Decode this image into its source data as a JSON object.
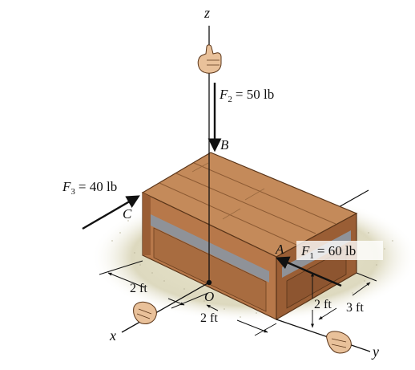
{
  "axes": {
    "x": "x",
    "y": "y",
    "z": "z"
  },
  "points": {
    "origin": "O",
    "A": "A",
    "B": "B",
    "C": "C"
  },
  "forces": {
    "f1": {
      "symbol": "F",
      "subscript": "1",
      "equals": "= 60 lb",
      "magnitude_lb": 60
    },
    "f2": {
      "symbol": "F",
      "subscript": "2",
      "equals": "= 50 lb",
      "magnitude_lb": 50
    },
    "f3": {
      "symbol": "F",
      "subscript": "3",
      "equals": "= 40 lb",
      "magnitude_lb": 40
    }
  },
  "dimensions": {
    "x_left": "2 ft",
    "x_right": "2 ft",
    "height_at_A": "2 ft",
    "depth_at_A": "3 ft"
  },
  "colors": {
    "crate": "#b7784a",
    "crate_top": "#c48a5a",
    "crate_side": "#9a5e35",
    "floor": "#ddd9bf",
    "slot": "#8f9298",
    "line": "#111111"
  }
}
